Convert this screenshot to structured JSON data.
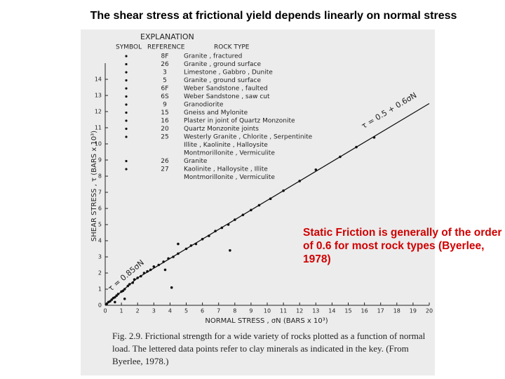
{
  "title": "The shear stress at frictional yield depends linearly on normal stress",
  "note": "Static Friction is generally of the order of 0.6 for most rock types (Byerlee, 1978)",
  "caption": "Fig. 2.9. Frictional strength for a wide variety of rocks plotted as a function of normal load. The lettered data points refer to clay minerals as indicated in the key. (From Byerlee, 1978.)",
  "chart_data": {
    "type": "scatter",
    "x_label": "NORMAL STRESS , σN (BARS x 10³)",
    "y_label": "SHEAR STRESS , τ (BARS x 10³)",
    "xlim": [
      0,
      20
    ],
    "ylim": [
      0,
      15
    ],
    "xticks": [
      0,
      1,
      2,
      3,
      4,
      5,
      6,
      7,
      8,
      9,
      10,
      11,
      12,
      13,
      14,
      15,
      16,
      17,
      18,
      19,
      20
    ],
    "yticks": [
      0,
      1,
      2,
      3,
      4,
      5,
      6,
      7,
      8,
      9,
      10,
      11,
      12,
      13,
      14
    ],
    "annotations": [
      "τ = 0.5 + 0.6σN",
      "τ = 0.85σN"
    ],
    "legend": {
      "title": "EXPLANATION",
      "columns": [
        "SYMBOL",
        "REFERENCE",
        "ROCK TYPE"
      ],
      "rows": [
        {
          "ref": "8F",
          "rock": [
            "Granite , fractured"
          ]
        },
        {
          "ref": "26",
          "rock": [
            "Granite , ground surface"
          ]
        },
        {
          "ref": "3",
          "rock": [
            "Limestone , Gabbro , Dunite"
          ]
        },
        {
          "ref": "5",
          "rock": [
            "Granite , ground surface"
          ]
        },
        {
          "ref": "6F",
          "rock": [
            "Weber Sandstone , faulted"
          ]
        },
        {
          "ref": "6S",
          "rock": [
            "Weber Sandstone , saw cut"
          ]
        },
        {
          "ref": "9",
          "rock": [
            "Granodiorite"
          ]
        },
        {
          "ref": "15",
          "rock": [
            "Gneiss and Mylonite"
          ]
        },
        {
          "ref": "16",
          "rock": [
            "Plaster in joint of Quartz Monzonite"
          ]
        },
        {
          "ref": "20",
          "rock": [
            "Quartz Monzonite joints"
          ]
        },
        {
          "ref": "25",
          "rock": [
            "Westerly Granite , Chlorite , Serpentinite",
            "Illite , Kaolinite , Halloysite",
            "Montmorillonite , Vermiculite"
          ]
        },
        {
          "ref": "26",
          "rock": [
            "Granite"
          ]
        },
        {
          "ref": "27",
          "rock": [
            "Kaolinite , Halloysite , Illite",
            "Montmorillonite , Vermiculite"
          ]
        }
      ]
    },
    "series": [
      {
        "color": "#111111",
        "x": [
          0.1,
          0.2,
          0.3,
          0.4,
          0.5,
          0.6,
          0.7,
          0.8,
          1.0,
          1.1,
          1.2,
          1.4,
          1.5,
          1.7,
          1.8,
          2.0,
          2.2,
          2.4,
          2.6,
          2.8,
          3.0,
          3.3,
          3.6,
          3.9,
          4.2,
          4.5,
          5.0,
          5.3,
          5.6,
          6.0,
          6.4,
          6.8,
          7.2,
          7.6,
          8.0,
          8.5,
          9.0,
          9.5,
          10.2,
          11.0,
          12.0,
          13.0,
          14.5,
          15.5,
          16.6,
          3.7,
          4.1,
          7.7,
          4.5,
          0.6,
          1.2
        ],
        "values": [
          0.1,
          0.2,
          0.25,
          0.35,
          0.45,
          0.5,
          0.6,
          0.7,
          0.85,
          0.9,
          1.0,
          1.2,
          1.3,
          1.4,
          1.6,
          1.7,
          1.8,
          2.0,
          2.1,
          2.2,
          2.4,
          2.5,
          2.7,
          2.9,
          3.0,
          3.2,
          3.5,
          3.7,
          3.8,
          4.1,
          4.3,
          4.6,
          4.8,
          5.0,
          5.3,
          5.6,
          5.9,
          6.2,
          6.6,
          7.1,
          7.7,
          8.4,
          9.2,
          9.8,
          10.4,
          2.2,
          1.1,
          3.4,
          3.8,
          0.2,
          0.4
        ]
      }
    ],
    "lines": [
      {
        "x": [
          0,
          2
        ],
        "values": [
          0,
          1.7
        ]
      },
      {
        "x": [
          2,
          20
        ],
        "values": [
          1.7,
          12.5
        ]
      }
    ]
  }
}
